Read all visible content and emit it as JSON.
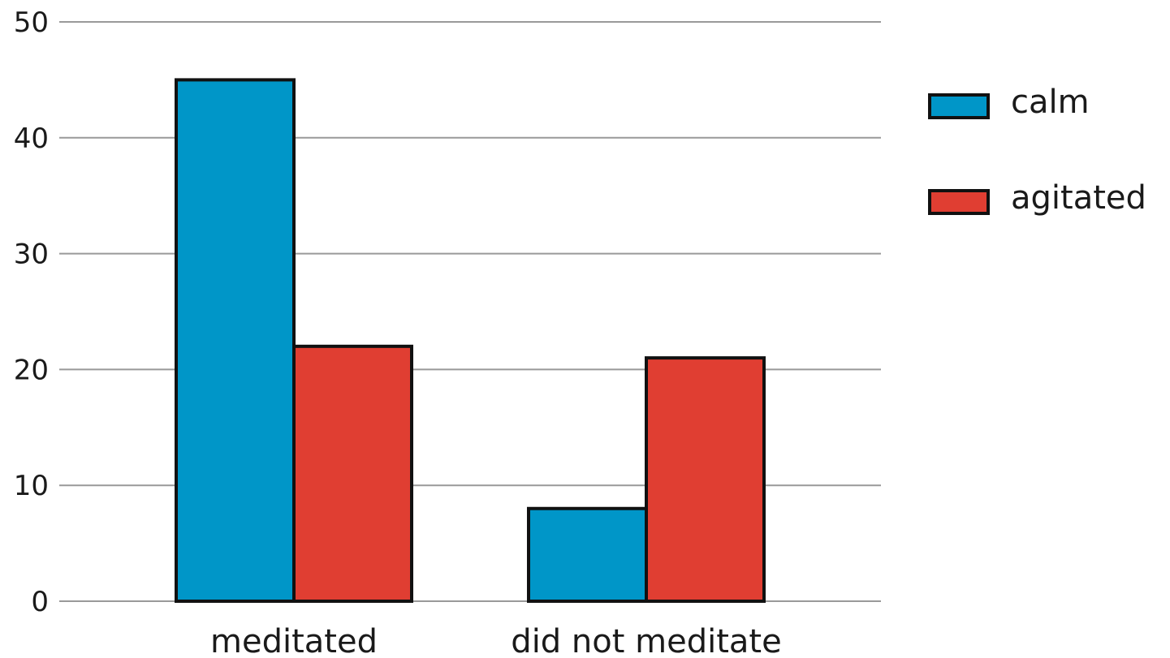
{
  "chart_data": {
    "type": "bar",
    "title": "",
    "xlabel": "",
    "ylabel": "",
    "categories": [
      "meditated",
      "did not meditate"
    ],
    "series": [
      {
        "name": "calm",
        "values": [
          45,
          8
        ],
        "color": "#0096C8"
      },
      {
        "name": "agitated",
        "values": [
          22,
          21
        ],
        "color": "#E03E32"
      }
    ],
    "ylim": [
      0,
      50
    ],
    "yticks": [
      0,
      10,
      20,
      30,
      40,
      50
    ],
    "grid": true,
    "legend_position": "right"
  }
}
